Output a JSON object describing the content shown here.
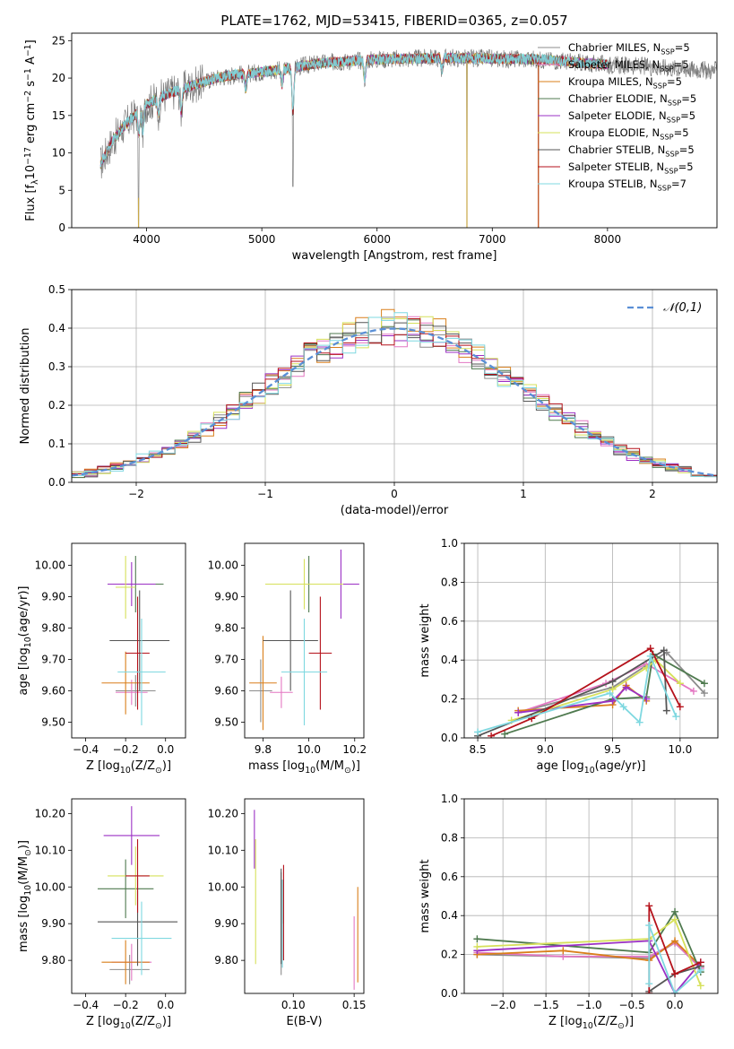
{
  "figure": {
    "title": "PLATE=1762, MJD=53415, FIBERID=0365, z=0.057",
    "model_colors": [
      "#8c8c8c",
      "#e377c2",
      "#d97f1a",
      "#4f7a4f",
      "#9b30c4",
      "#d6e05a",
      "#555555",
      "#b5121b",
      "#7fd8e0"
    ],
    "legend_names": [
      {
        "pre": "Chabrier MILES, N",
        "sub": "SSP",
        "post": "=5"
      },
      {
        "pre": "Salpeter MILES, N",
        "sub": "SSP",
        "post": "=5"
      },
      {
        "pre": "Kroupa MILES, N",
        "sub": "SSP",
        "post": "=5"
      },
      {
        "pre": "Chabrier ELODIE, N",
        "sub": "SSP",
        "post": "=5"
      },
      {
        "pre": "Salpeter ELODIE, N",
        "sub": "SSP",
        "post": "=5"
      },
      {
        "pre": "Kroupa ELODIE, N",
        "sub": "SSP",
        "post": "=5"
      },
      {
        "pre": "Chabrier STELIB, N",
        "sub": "SSP",
        "post": "=5"
      },
      {
        "pre": "Salpeter STELIB, N",
        "sub": "SSP",
        "post": "=5"
      },
      {
        "pre": "Kroupa STELIB, N",
        "sub": "SSP",
        "post": "=7"
      }
    ]
  },
  "chart_data": [
    {
      "id": "spectrum",
      "type": "line",
      "xlabel": "wavelength [Angstrom, rest frame]",
      "ylabel": {
        "pre": "Flux [f",
        "sub": "λ",
        "mid": "10",
        "sup": "−17",
        "post": " erg cm",
        "sup2": "−2",
        "post2": " s",
        "sup3": "−1",
        "post3": " A",
        "sup4": "−1",
        "post4": "]"
      },
      "xlim": [
        3350,
        8950
      ],
      "ylim": [
        0,
        26
      ],
      "xticks": [
        4000,
        5000,
        6000,
        7000,
        8000
      ],
      "yticks": [
        0,
        5,
        10,
        15,
        20,
        25
      ],
      "grid": false,
      "legend": "upper right",
      "continuum": [
        [
          3600,
          8.5
        ],
        [
          3700,
          11.5
        ],
        [
          3800,
          13.5
        ],
        [
          3900,
          15
        ],
        [
          4000,
          16.5
        ],
        [
          4200,
          18
        ],
        [
          4400,
          19
        ],
        [
          4600,
          20
        ],
        [
          4800,
          20.5
        ],
        [
          5000,
          20.8
        ],
        [
          5200,
          21.2
        ],
        [
          5500,
          22
        ],
        [
          5800,
          22.3
        ],
        [
          6000,
          22.5
        ],
        [
          6300,
          22.6
        ],
        [
          6600,
          22.7
        ],
        [
          7000,
          22.6
        ],
        [
          7400,
          22.5
        ],
        [
          7600,
          22.3
        ],
        [
          7800,
          22
        ],
        [
          8000,
          21.8
        ],
        [
          8300,
          21.6
        ],
        [
          8500,
          21.4
        ],
        [
          8700,
          21.2
        ],
        [
          8900,
          21
        ]
      ],
      "absorption_features": [
        [
          3934,
          3
        ],
        [
          3968,
          3
        ],
        [
          4102,
          2
        ],
        [
          4300,
          3
        ],
        [
          4861,
          2
        ],
        [
          5175,
          2
        ],
        [
          5270,
          6
        ],
        [
          5893,
          2.5
        ],
        [
          6563,
          1.5
        ]
      ],
      "spikes": [
        [
          3930,
          0
        ],
        [
          5270,
          5.5
        ],
        [
          6780,
          0
        ],
        [
          7400,
          0
        ]
      ],
      "x_range_model": [
        3600,
        8950
      ]
    },
    {
      "id": "residuals",
      "type": "histogram",
      "xlabel": "(data-model)/error",
      "ylabel": "Normed distribution",
      "xlim": [
        -2.5,
        2.5
      ],
      "ylim": [
        0,
        0.5
      ],
      "xticks": [
        -2,
        -1,
        0,
        1,
        2
      ],
      "yticks": [
        0,
        0.1,
        0.2,
        0.3,
        0.4,
        0.5
      ],
      "grid": true,
      "legend": "upper right",
      "reference_curve": {
        "label": "𝒩(0,1)",
        "mean": 0,
        "sigma": 1
      },
      "bins": {
        "start": -2.5,
        "width": 0.1,
        "count": 50
      }
    },
    {
      "id": "age_vs_Z",
      "type": "errorbar",
      "xlabel": {
        "pre": "Z [log",
        "sub": "10",
        "post": "(Z/Z",
        "sub2": "⊙",
        "post2": ")]"
      },
      "ylabel": {
        "pre": "age  [log",
        "sub": "10",
        "post": "(age/yr)]"
      },
      "xlim": [
        -0.47,
        0.1
      ],
      "ylim": [
        9.45,
        10.07
      ],
      "xticks": [
        -0.4,
        -0.2,
        0.0
      ],
      "yticks": [
        9.5,
        9.6,
        9.7,
        9.8,
        9.9,
        10.0
      ],
      "points": [
        {
          "x": -0.15,
          "y": 9.6,
          "xerr": 0.1,
          "yerr": 0.05
        },
        {
          "x": -0.17,
          "y": 9.595,
          "xerr": 0.08,
          "yerr": 0.04
        },
        {
          "x": -0.2,
          "y": 9.625,
          "xerr": 0.12,
          "yerr": 0.1
        },
        {
          "x": -0.15,
          "y": 9.94,
          "xerr": 0.14,
          "yerr": 0.09
        },
        {
          "x": -0.17,
          "y": 9.94,
          "xerr": 0.12,
          "yerr": 0.07
        },
        {
          "x": -0.2,
          "y": 9.93,
          "xerr": 0.05,
          "yerr": 0.1
        },
        {
          "x": -0.13,
          "y": 9.76,
          "xerr": 0.15,
          "yerr": 0.16
        },
        {
          "x": -0.14,
          "y": 9.72,
          "xerr": 0.06,
          "yerr": 0.18
        },
        {
          "x": -0.12,
          "y": 9.66,
          "xerr": 0.12,
          "yerr": 0.17
        }
      ]
    },
    {
      "id": "age_vs_mass",
      "type": "errorbar",
      "xlabel": {
        "pre": "mass [log",
        "sub": "10",
        "post": "(M/M",
        "sub2": "⊙",
        "post2": ")]"
      },
      "ylabel": "",
      "xlim": [
        9.72,
        10.24
      ],
      "ylim": [
        9.45,
        10.07
      ],
      "xticks": [
        9.8,
        10.0,
        10.2
      ],
      "yticks": [
        9.5,
        9.6,
        9.7,
        9.8,
        9.9,
        10.0
      ],
      "points": [
        {
          "x": 9.79,
          "y": 9.6,
          "xerr": 0.05,
          "yerr": 0.1
        },
        {
          "x": 9.88,
          "y": 9.595,
          "xerr": 0.05,
          "yerr": 0.05
        },
        {
          "x": 9.8,
          "y": 9.625,
          "xerr": 0.06,
          "yerr": 0.15
        },
        {
          "x": 10.0,
          "y": 9.94,
          "xerr": 0.08,
          "yerr": 0.09
        },
        {
          "x": 10.14,
          "y": 9.94,
          "xerr": 0.08,
          "yerr": 0.11
        },
        {
          "x": 9.98,
          "y": 9.94,
          "xerr": 0.17,
          "yerr": 0.08
        },
        {
          "x": 9.92,
          "y": 9.76,
          "xerr": 0.12,
          "yerr": 0.16
        },
        {
          "x": 10.05,
          "y": 9.72,
          "xerr": 0.05,
          "yerr": 0.18
        },
        {
          "x": 9.98,
          "y": 9.66,
          "xerr": 0.1,
          "yerr": 0.17
        }
      ]
    },
    {
      "id": "weight_vs_age",
      "type": "line",
      "xlabel": {
        "pre": "age  [log",
        "sub": "10",
        "post": "(age/yr)]"
      },
      "ylabel": "mass weight",
      "xlim": [
        8.4,
        10.28
      ],
      "ylim": [
        0,
        1
      ],
      "xticks": [
        8.5,
        9.0,
        9.5,
        10.0
      ],
      "yticks": [
        0,
        0.2,
        0.4,
        0.6,
        0.8,
        1.0
      ],
      "grid": true,
      "series": [
        {
          "x": [
            8.8,
            9.5,
            9.9,
            10.18
          ],
          "y": [
            0.13,
            0.26,
            0.44,
            0.23
          ]
        },
        {
          "x": [
            8.8,
            9.45,
            9.75,
            10.1
          ],
          "y": [
            0.13,
            0.28,
            0.38,
            0.24
          ]
        },
        {
          "x": [
            8.8,
            9.5,
            9.6,
            9.75
          ],
          "y": [
            0.14,
            0.17,
            0.27,
            0.19
          ]
        },
        {
          "x": [
            8.7,
            9.5,
            9.75,
            9.8,
            10.18
          ],
          "y": [
            0.02,
            0.2,
            0.21,
            0.43,
            0.28
          ]
        },
        {
          "x": [
            8.8,
            9.5,
            9.6,
            9.75
          ],
          "y": [
            0.13,
            0.19,
            0.26,
            0.2
          ]
        },
        {
          "x": [
            8.75,
            9.5,
            9.75,
            9.82,
            10.0
          ],
          "y": [
            0.09,
            0.25,
            0.36,
            0.4,
            0.28
          ]
        },
        {
          "x": [
            8.5,
            9.5,
            9.88,
            9.9
          ],
          "y": [
            0.01,
            0.29,
            0.45,
            0.14
          ]
        },
        {
          "x": [
            8.6,
            8.9,
            9.78,
            10.0
          ],
          "y": [
            0.01,
            0.1,
            0.46,
            0.16
          ]
        },
        {
          "x": [
            8.5,
            9.48,
            9.58,
            9.7,
            9.78,
            9.97
          ],
          "y": [
            0.03,
            0.23,
            0.16,
            0.08,
            0.42,
            0.11
          ]
        }
      ]
    },
    {
      "id": "mass_vs_Z",
      "type": "errorbar",
      "xlabel": {
        "pre": "Z [log",
        "sub": "10",
        "post": "(Z/Z",
        "sub2": "⊙",
        "post2": ")]"
      },
      "ylabel": {
        "pre": "mass [log",
        "sub": "10",
        "post": "(M/M",
        "sub2": "⊙",
        "post2": ")]"
      },
      "xlim": [
        -0.47,
        0.1
      ],
      "ylim": [
        9.71,
        10.24
      ],
      "xticks": [
        -0.4,
        -0.2,
        0.0
      ],
      "yticks": [
        9.8,
        9.9,
        10.0,
        10.1,
        10.2
      ],
      "points": [
        {
          "x": -0.18,
          "y": 9.775,
          "xerr": 0.1,
          "yerr": 0.04
        },
        {
          "x": -0.17,
          "y": 9.795,
          "xerr": 0.1,
          "yerr": 0.05
        },
        {
          "x": -0.2,
          "y": 9.795,
          "xerr": 0.12,
          "yerr": 0.06
        },
        {
          "x": -0.2,
          "y": 9.995,
          "xerr": 0.14,
          "yerr": 0.08
        },
        {
          "x": -0.17,
          "y": 10.14,
          "xerr": 0.14,
          "yerr": 0.08
        },
        {
          "x": -0.15,
          "y": 10.03,
          "xerr": 0.14,
          "yerr": 0.08
        },
        {
          "x": -0.14,
          "y": 9.905,
          "xerr": 0.2,
          "yerr": 0.12
        },
        {
          "x": -0.14,
          "y": 10.03,
          "xerr": 0.06,
          "yerr": 0.1
        },
        {
          "x": -0.12,
          "y": 9.86,
          "xerr": 0.15,
          "yerr": 0.1
        }
      ]
    },
    {
      "id": "mass_vs_EBV",
      "type": "errorbar",
      "xlabel": "E(B-V)",
      "ylabel": "",
      "xlim": [
        0.06,
        0.158
      ],
      "ylim": [
        9.71,
        10.24
      ],
      "xticks": [
        0.1,
        0.15
      ],
      "yticks": [
        9.8,
        9.9,
        10.0,
        10.1,
        10.2
      ],
      "points": [
        {
          "x": 0.09,
          "y": 9.9,
          "xerr": 0.0,
          "yerr": 0.14
        },
        {
          "x": 0.15,
          "y": 9.82,
          "xerr": 0.0,
          "yerr": 0.1
        },
        {
          "x": 0.153,
          "y": 9.87,
          "xerr": 0.0,
          "yerr": 0.13
        },
        {
          "x": 0.092,
          "y": 9.96,
          "xerr": 0.0,
          "yerr": 0.06
        },
        {
          "x": 0.068,
          "y": 10.13,
          "xerr": 0.0,
          "yerr": 0.08
        },
        {
          "x": 0.069,
          "y": 9.96,
          "xerr": 0.0,
          "yerr": 0.17
        },
        {
          "x": 0.09,
          "y": 9.92,
          "xerr": 0.0,
          "yerr": 0.13
        },
        {
          "x": 0.092,
          "y": 9.93,
          "xerr": 0.0,
          "yerr": 0.13
        },
        {
          "x": 0.091,
          "y": 9.9,
          "xerr": 0.0,
          "yerr": 0.12
        }
      ]
    },
    {
      "id": "weight_vs_Z",
      "type": "line",
      "xlabel": {
        "pre": "Z [log",
        "sub": "10",
        "post": "(Z/Z",
        "sub2": "⊙",
        "post2": ")]"
      },
      "ylabel": "mass weight",
      "xlim": [
        -2.45,
        0.5
      ],
      "ylim": [
        0,
        1
      ],
      "xticks": [
        -2.0,
        -1.5,
        -1.0,
        -0.5,
        0.0
      ],
      "yticks": [
        0,
        0.2,
        0.4,
        0.6,
        0.8,
        1.0
      ],
      "grid": true,
      "series": [
        {
          "x": [
            -2.3,
            -0.3,
            0.0,
            0.3
          ],
          "y": [
            0.2,
            0.18,
            0.26,
            0.13
          ]
        },
        {
          "x": [
            -2.3,
            -1.3,
            -0.3,
            0.0,
            0.3
          ],
          "y": [
            0.21,
            0.19,
            0.19,
            0.26,
            0.13
          ]
        },
        {
          "x": [
            -2.3,
            -1.3,
            -0.3,
            0.0,
            0.3
          ],
          "y": [
            0.2,
            0.22,
            0.17,
            0.27,
            0.14
          ]
        },
        {
          "x": [
            -2.3,
            -0.3,
            0.0,
            0.3
          ],
          "y": [
            0.28,
            0.21,
            0.42,
            0.11
          ]
        },
        {
          "x": [
            -2.3,
            -0.3,
            0.0,
            0.3
          ],
          "y": [
            0.22,
            0.27,
            0.0,
            0.16
          ]
        },
        {
          "x": [
            -2.3,
            -0.3,
            0.0,
            0.3
          ],
          "y": [
            0.24,
            0.28,
            0.38,
            0.04
          ]
        },
        {
          "x": [
            -0.3,
            0.0,
            0.3
          ],
          "y": [
            0.01,
            0.1,
            0.14
          ]
        },
        {
          "x": [
            -0.3,
            -0.3,
            0.0,
            0.3
          ],
          "y": [
            0.0,
            0.45,
            0.1,
            0.16
          ]
        },
        {
          "x": [
            -0.3,
            -0.3,
            0.0,
            0.3
          ],
          "y": [
            0.05,
            0.35,
            0.0,
            0.12
          ]
        }
      ]
    }
  ]
}
